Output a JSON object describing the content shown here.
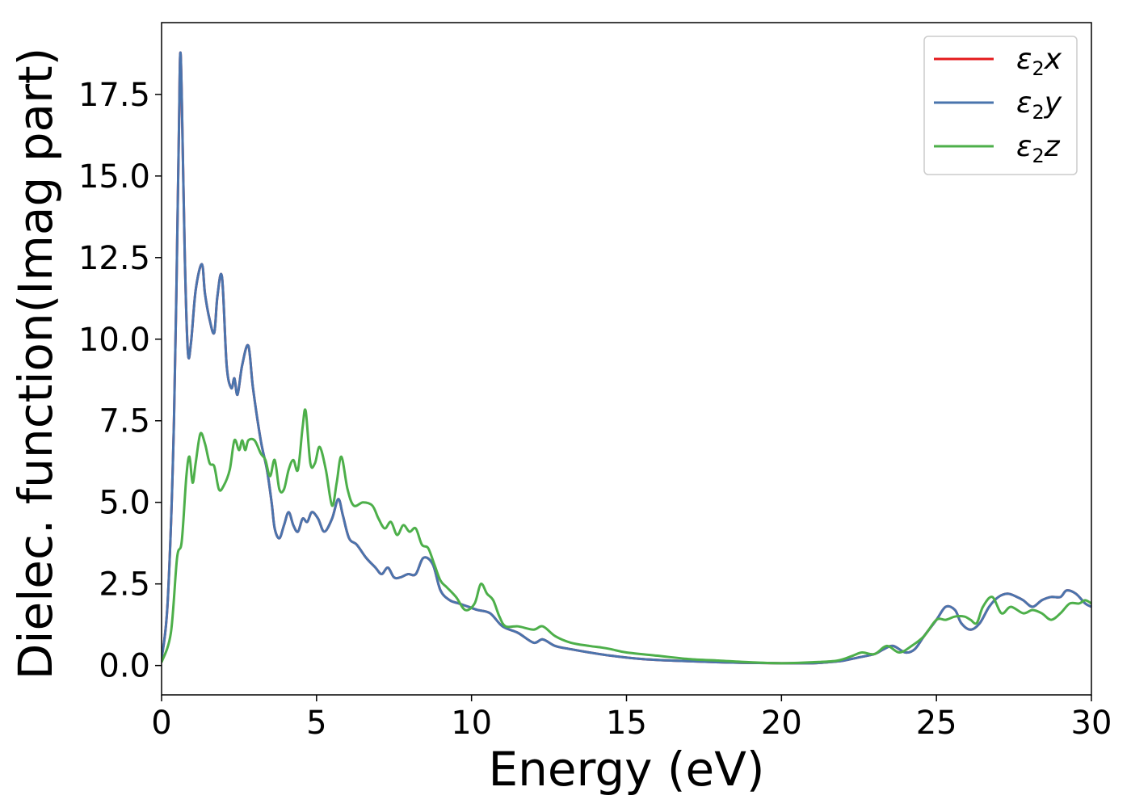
{
  "chart_data": {
    "type": "line",
    "xlabel": "Energy (eV)",
    "ylabel": "Dielec. function(Imag part)",
    "xlim": [
      0,
      30
    ],
    "ylim": [
      -0.9,
      19.7
    ],
    "xticks": [
      0,
      5,
      10,
      15,
      20,
      25,
      30
    ],
    "xtick_labels": [
      "0",
      "5",
      "10",
      "15",
      "20",
      "25",
      "30"
    ],
    "yticks": [
      0.0,
      2.5,
      5.0,
      7.5,
      10.0,
      12.5,
      15.0,
      17.5
    ],
    "ytick_labels": [
      "0.0",
      "2.5",
      "5.0",
      "7.5",
      "10.0",
      "12.5",
      "15.0",
      "17.5"
    ],
    "grid": false,
    "legend_position": "top-right",
    "series": [
      {
        "name": "x",
        "legend_base": "ε",
        "legend_sub": "2",
        "legend_var": "x",
        "color": "#e41a1c",
        "x": [
          0,
          0.2,
          0.4,
          0.55,
          0.6,
          0.65,
          0.75,
          0.85,
          0.95,
          1.1,
          1.3,
          1.4,
          1.55,
          1.7,
          1.8,
          1.95,
          2.1,
          2.25,
          2.35,
          2.45,
          2.6,
          2.8,
          2.95,
          3.2,
          3.4,
          3.55,
          3.65,
          3.8,
          3.95,
          4.1,
          4.25,
          4.4,
          4.55,
          4.7,
          4.85,
          5.05,
          5.25,
          5.5,
          5.7,
          5.85,
          6.05,
          6.3,
          6.6,
          6.9,
          7.1,
          7.3,
          7.5,
          7.7,
          7.95,
          8.2,
          8.45,
          8.75,
          9.0,
          9.3,
          9.6,
          9.9,
          10.2,
          10.6,
          11.0,
          11.5,
          12.0,
          12.3,
          12.7,
          13.2,
          13.8,
          14.5,
          15.5,
          16.5,
          18,
          19,
          20,
          21,
          21.5,
          22,
          22.5,
          23,
          23.3,
          23.6,
          24,
          24.3,
          24.6,
          25,
          25.3,
          25.6,
          25.8,
          26.1,
          26.4,
          26.7,
          27,
          27.3,
          27.6,
          27.8,
          28.1,
          28.4,
          28.7,
          29,
          29.2,
          29.5,
          29.8,
          30
        ],
        "values": [
          0.2,
          2.0,
          7.5,
          15.8,
          18.7,
          17.5,
          12.5,
          9.6,
          9.9,
          11.5,
          12.3,
          11.4,
          10.6,
          10.2,
          11.3,
          11.9,
          9.2,
          8.5,
          8.8,
          8.3,
          9.2,
          9.8,
          8.5,
          6.9,
          6.0,
          5.0,
          4.2,
          3.9,
          4.3,
          4.7,
          4.3,
          4.1,
          4.5,
          4.4,
          4.7,
          4.5,
          4.1,
          4.5,
          5.1,
          4.6,
          3.9,
          3.7,
          3.3,
          3.0,
          2.8,
          3.0,
          2.7,
          2.7,
          2.8,
          2.8,
          3.3,
          3.1,
          2.3,
          2.0,
          1.9,
          1.8,
          1.7,
          1.6,
          1.2,
          1.0,
          0.7,
          0.8,
          0.6,
          0.5,
          0.4,
          0.3,
          0.2,
          0.15,
          0.1,
          0.08,
          0.07,
          0.07,
          0.1,
          0.15,
          0.25,
          0.35,
          0.5,
          0.6,
          0.4,
          0.5,
          0.9,
          1.4,
          1.8,
          1.7,
          1.3,
          1.1,
          1.3,
          1.8,
          2.1,
          2.2,
          2.1,
          2.0,
          1.8,
          2.0,
          2.1,
          2.1,
          2.3,
          2.2,
          1.9,
          1.8
        ]
      },
      {
        "name": "y",
        "legend_base": "ε",
        "legend_sub": "2",
        "legend_var": "y",
        "color": "#4a74ad",
        "x": [
          0,
          0.2,
          0.4,
          0.55,
          0.6,
          0.65,
          0.75,
          0.85,
          0.95,
          1.1,
          1.3,
          1.4,
          1.55,
          1.7,
          1.8,
          1.95,
          2.1,
          2.25,
          2.35,
          2.45,
          2.6,
          2.8,
          2.95,
          3.2,
          3.4,
          3.55,
          3.65,
          3.8,
          3.95,
          4.1,
          4.25,
          4.4,
          4.55,
          4.7,
          4.85,
          5.05,
          5.25,
          5.5,
          5.7,
          5.85,
          6.05,
          6.3,
          6.6,
          6.9,
          7.1,
          7.3,
          7.5,
          7.7,
          7.95,
          8.2,
          8.45,
          8.75,
          9.0,
          9.3,
          9.6,
          9.9,
          10.2,
          10.6,
          11.0,
          11.5,
          12.0,
          12.3,
          12.7,
          13.2,
          13.8,
          14.5,
          15.5,
          16.5,
          18,
          19,
          20,
          21,
          21.5,
          22,
          22.5,
          23,
          23.3,
          23.6,
          24,
          24.3,
          24.6,
          25,
          25.3,
          25.6,
          25.8,
          26.1,
          26.4,
          26.7,
          27,
          27.3,
          27.6,
          27.8,
          28.1,
          28.4,
          28.7,
          29,
          29.2,
          29.5,
          29.8,
          30
        ],
        "values": [
          0.2,
          2.0,
          7.5,
          15.8,
          18.7,
          17.5,
          12.5,
          9.6,
          9.9,
          11.5,
          12.3,
          11.4,
          10.6,
          10.2,
          11.3,
          11.9,
          9.2,
          8.5,
          8.8,
          8.3,
          9.2,
          9.8,
          8.5,
          6.9,
          6.0,
          5.0,
          4.2,
          3.9,
          4.3,
          4.7,
          4.3,
          4.1,
          4.5,
          4.4,
          4.7,
          4.5,
          4.1,
          4.5,
          5.1,
          4.6,
          3.9,
          3.7,
          3.3,
          3.0,
          2.8,
          3.0,
          2.7,
          2.7,
          2.8,
          2.8,
          3.3,
          3.1,
          2.3,
          2.0,
          1.9,
          1.8,
          1.7,
          1.6,
          1.2,
          1.0,
          0.7,
          0.8,
          0.6,
          0.5,
          0.4,
          0.3,
          0.2,
          0.15,
          0.1,
          0.08,
          0.07,
          0.07,
          0.1,
          0.15,
          0.25,
          0.35,
          0.5,
          0.6,
          0.4,
          0.5,
          0.9,
          1.4,
          1.8,
          1.7,
          1.3,
          1.1,
          1.3,
          1.8,
          2.1,
          2.2,
          2.1,
          2.0,
          1.8,
          2.0,
          2.1,
          2.1,
          2.3,
          2.2,
          1.9,
          1.8
        ]
      },
      {
        "name": "z",
        "legend_base": "ε",
        "legend_sub": "2",
        "legend_var": "z",
        "color": "#4daf4a",
        "x": [
          0,
          0.3,
          0.5,
          0.65,
          0.8,
          0.9,
          1.0,
          1.1,
          1.25,
          1.4,
          1.55,
          1.7,
          1.85,
          2.0,
          2.2,
          2.35,
          2.5,
          2.6,
          2.7,
          2.8,
          3.0,
          3.2,
          3.35,
          3.5,
          3.65,
          3.8,
          3.95,
          4.1,
          4.25,
          4.4,
          4.55,
          4.65,
          4.8,
          4.95,
          5.1,
          5.3,
          5.5,
          5.65,
          5.8,
          6.0,
          6.2,
          6.5,
          6.8,
          7.0,
          7.2,
          7.4,
          7.6,
          7.8,
          8.0,
          8.2,
          8.4,
          8.6,
          8.8,
          9.0,
          9.2,
          9.5,
          9.8,
          10.1,
          10.3,
          10.5,
          10.7,
          10.9,
          11.1,
          11.5,
          12.0,
          12.3,
          12.7,
          13.2,
          13.8,
          14.2,
          14.5,
          15.0,
          16.0,
          17.0,
          18.0,
          19.0,
          20.0,
          21.0,
          21.8,
          22.3,
          22.6,
          23.0,
          23.4,
          23.8,
          24.2,
          24.6,
          25.0,
          25.3,
          25.6,
          25.9,
          26.1,
          26.3,
          26.5,
          26.8,
          27.1,
          27.4,
          27.8,
          28.1,
          28.4,
          28.7,
          29.0,
          29.3,
          29.6,
          29.8,
          30.0
        ],
        "values": [
          0.1,
          1.0,
          3.3,
          3.8,
          5.8,
          6.4,
          5.6,
          6.2,
          7.1,
          6.8,
          6.2,
          6.1,
          5.4,
          5.5,
          6.0,
          6.9,
          6.6,
          6.9,
          6.6,
          6.9,
          6.9,
          6.5,
          6.3,
          5.8,
          6.3,
          5.4,
          5.4,
          6.0,
          6.3,
          6.0,
          7.3,
          7.8,
          6.2,
          6.2,
          6.7,
          6.0,
          4.9,
          5.6,
          6.4,
          5.4,
          4.9,
          5.0,
          4.9,
          4.5,
          4.2,
          4.4,
          4.0,
          4.3,
          4.1,
          4.2,
          3.7,
          3.6,
          3.1,
          2.6,
          2.4,
          2.1,
          1.7,
          1.9,
          2.5,
          2.2,
          2.0,
          1.5,
          1.2,
          1.2,
          1.1,
          1.2,
          0.9,
          0.7,
          0.6,
          0.55,
          0.5,
          0.4,
          0.3,
          0.2,
          0.15,
          0.1,
          0.07,
          0.1,
          0.15,
          0.3,
          0.4,
          0.35,
          0.6,
          0.4,
          0.6,
          0.9,
          1.4,
          1.4,
          1.5,
          1.5,
          1.4,
          1.3,
          1.8,
          2.1,
          1.6,
          1.8,
          1.6,
          1.7,
          1.6,
          1.4,
          1.6,
          1.9,
          1.9,
          2.0,
          1.9
        ]
      }
    ]
  }
}
